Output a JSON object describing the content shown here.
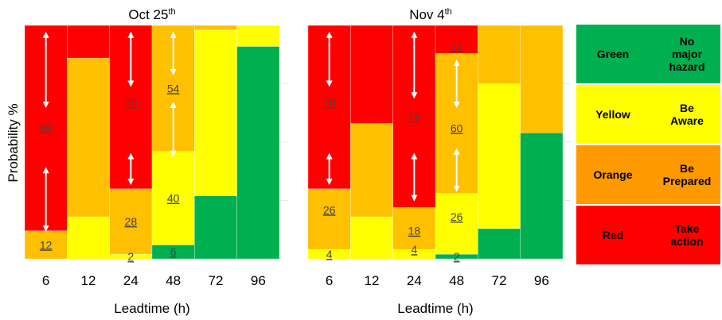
{
  "chart_data": {
    "type": "bar",
    "stacked": true,
    "ylabel": "Probability %",
    "xlabel": "Leadtime (h)",
    "ylim": [
      0,
      100
    ],
    "category_colors": {
      "Green": "#00b050",
      "Yellow": "#ffff00",
      "Orange": "#ffc000",
      "Red": "#ff0000"
    },
    "panels": [
      {
        "title": "Oct 25",
        "title_sup": "th",
        "categories": [
          "6",
          "12",
          "24",
          "48",
          "72",
          "96"
        ],
        "series": [
          {
            "name": "Green",
            "values": [
              0,
              0,
              0,
              6,
              27,
              91
            ]
          },
          {
            "name": "Yellow",
            "values": [
              0,
              18,
              2,
              40,
              71,
              9
            ]
          },
          {
            "name": "Orange",
            "values": [
              12,
              68,
              28,
              54,
              2,
              0
            ]
          },
          {
            "name": "Red",
            "values": [
              88,
              14,
              70,
              0,
              0,
              0
            ]
          }
        ],
        "labels": [
          {
            "cat": 0,
            "value": "12",
            "y": 6
          },
          {
            "cat": 0,
            "value": "88",
            "y": 56
          },
          {
            "cat": 2,
            "value": "2",
            "y": 1
          },
          {
            "cat": 2,
            "value": "28",
            "y": 16
          },
          {
            "cat": 2,
            "value": "70",
            "y": 67
          },
          {
            "cat": 3,
            "value": "6",
            "y": 3
          },
          {
            "cat": 3,
            "value": "40",
            "y": 26
          },
          {
            "cat": 3,
            "value": "54",
            "y": 73
          }
        ],
        "arrows": [
          {
            "cat": 0,
            "y1": 96,
            "y2": 66
          },
          {
            "cat": 0,
            "y1": 38,
            "y2": 13
          },
          {
            "cat": 2,
            "y1": 96,
            "y2": 75
          },
          {
            "cat": 2,
            "y1": 44,
            "y2": 33
          },
          {
            "cat": 3,
            "y1": 96,
            "y2": 80
          },
          {
            "cat": 3,
            "y1": 66,
            "y2": 45
          }
        ]
      },
      {
        "title": "Nov 4",
        "title_sup": "th",
        "categories": [
          "6",
          "12",
          "24",
          "48",
          "72",
          "96"
        ],
        "series": [
          {
            "name": "Green",
            "values": [
              0,
              0,
              0,
              2,
              13,
              54
            ]
          },
          {
            "name": "Yellow",
            "values": [
              4,
              18,
              4,
              26,
              62,
              0
            ]
          },
          {
            "name": "Orange",
            "values": [
              26,
              40,
              18,
              60,
              25,
              46
            ]
          },
          {
            "name": "Red",
            "values": [
              70,
              42,
              78,
              12,
              0,
              0
            ]
          }
        ],
        "labels": [
          {
            "cat": 0,
            "value": "4",
            "y": 2
          },
          {
            "cat": 0,
            "value": "26",
            "y": 21
          },
          {
            "cat": 0,
            "value": "70",
            "y": 67
          },
          {
            "cat": 2,
            "value": "4",
            "y": 4
          },
          {
            "cat": 2,
            "value": "18",
            "y": 12
          },
          {
            "cat": 2,
            "value": "78",
            "y": 61
          },
          {
            "cat": 3,
            "value": "2",
            "y": 1
          },
          {
            "cat": 3,
            "value": "26",
            "y": 18
          },
          {
            "cat": 3,
            "value": "60",
            "y": 56
          },
          {
            "cat": 3,
            "value": "12",
            "y": 91
          }
        ],
        "arrows": [
          {
            "cat": 0,
            "y1": 96,
            "y2": 75
          },
          {
            "cat": 0,
            "y1": 44,
            "y2": 33
          },
          {
            "cat": 2,
            "y1": 96,
            "y2": 70
          },
          {
            "cat": 2,
            "y1": 44,
            "y2": 26
          },
          {
            "cat": 3,
            "y1": 84,
            "y2": 66
          },
          {
            "cat": 3,
            "y1": 46,
            "y2": 30
          }
        ]
      }
    ]
  },
  "legend": [
    {
      "color_name": "Green",
      "color": "#00b050",
      "lines": [
        "No",
        "major",
        "hazard"
      ]
    },
    {
      "color_name": "Yellow",
      "color": "#ffff00",
      "lines": [
        "Be",
        "Aware"
      ]
    },
    {
      "color_name": "Orange",
      "color": "#ff9900",
      "lines": [
        "Be",
        "Prepared"
      ]
    },
    {
      "color_name": "Red",
      "color": "#ff0000",
      "lines": [
        "Take",
        "action"
      ]
    }
  ]
}
